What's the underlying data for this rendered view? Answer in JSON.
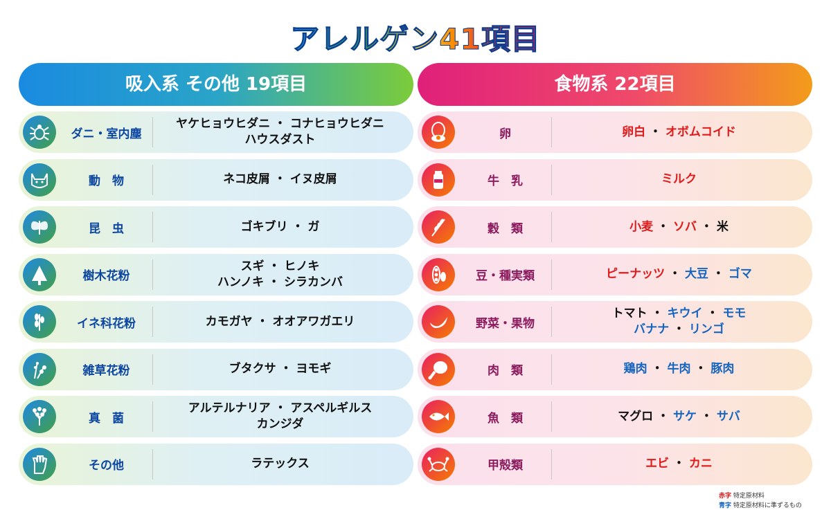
{
  "title": "アレルゲン41項目",
  "colors": {
    "red": "#e01a1a",
    "blue": "#1565c0",
    "left_accent": "#1a8be0",
    "right_accent": "#e0207a"
  },
  "left": {
    "header": "吸入系 その他 19項目",
    "rows": [
      {
        "icon": "mite-icon",
        "category": "ダニ・室内塵",
        "lines": [
          "ヤケヒョウヒダニ ・ コナヒョウヒダニ",
          "ハウスダスト"
        ]
      },
      {
        "icon": "cat-icon",
        "category": "動　物",
        "lines": [
          "ネコ皮屑 ・ イヌ皮屑"
        ]
      },
      {
        "icon": "moth-icon",
        "category": "昆　虫",
        "lines": [
          "ゴキブリ ・ ガ"
        ]
      },
      {
        "icon": "tree-icon",
        "category": "樹木花粉",
        "lines": [
          "スギ ・ ヒノキ",
          "ハンノキ ・ シラカンバ"
        ]
      },
      {
        "icon": "grass-icon",
        "category": "イネ科花粉",
        "lines": [
          "カモガヤ ・ オオアワガエリ"
        ]
      },
      {
        "icon": "weed-icon",
        "category": "雑草花粉",
        "lines": [
          "ブタクサ ・ ヨモギ"
        ]
      },
      {
        "icon": "fungus-icon",
        "category": "真　菌",
        "lines": [
          "アルテルナリア ・ アスペルギルス",
          "カンジダ"
        ]
      },
      {
        "icon": "glove-icon",
        "category": "その他",
        "lines": [
          "ラテックス"
        ]
      }
    ]
  },
  "right": {
    "header": "食物系 22項目",
    "rows": [
      {
        "icon": "egg-icon",
        "category": "卵",
        "lines": [
          [
            {
              "t": "卵白",
              "c": "red"
            },
            {
              "t": " ・ ",
              "c": "black"
            },
            {
              "t": "オボムコイド",
              "c": "red"
            }
          ]
        ]
      },
      {
        "icon": "milk-icon",
        "category": "牛　乳",
        "lines": [
          [
            {
              "t": "ミルク",
              "c": "red"
            }
          ]
        ]
      },
      {
        "icon": "wheat-icon",
        "category": "穀　類",
        "lines": [
          [
            {
              "t": "小麦",
              "c": "red"
            },
            {
              "t": " ・ ",
              "c": "black"
            },
            {
              "t": "ソバ",
              "c": "red"
            },
            {
              "t": " ・ ",
              "c": "black"
            },
            {
              "t": "米",
              "c": "black"
            }
          ]
        ]
      },
      {
        "icon": "bean-icon",
        "category": "豆・種実類",
        "lines": [
          [
            {
              "t": "ピーナッツ",
              "c": "red"
            },
            {
              "t": " ・ ",
              "c": "black"
            },
            {
              "t": "大豆",
              "c": "blue"
            },
            {
              "t": " ・ ",
              "c": "black"
            },
            {
              "t": "ゴマ",
              "c": "blue"
            }
          ]
        ]
      },
      {
        "icon": "banana-icon",
        "category": "野菜・果物",
        "lines": [
          [
            {
              "t": "トマト",
              "c": "black"
            },
            {
              "t": " ・ ",
              "c": "black"
            },
            {
              "t": "キウイ",
              "c": "blue"
            },
            {
              "t": " ・ ",
              "c": "black"
            },
            {
              "t": "モモ",
              "c": "blue"
            }
          ],
          [
            {
              "t": "バナナ",
              "c": "blue"
            },
            {
              "t": " ・ ",
              "c": "black"
            },
            {
              "t": "リンゴ",
              "c": "blue"
            }
          ]
        ]
      },
      {
        "icon": "meat-icon",
        "category": "肉　類",
        "lines": [
          [
            {
              "t": "鶏肉",
              "c": "blue"
            },
            {
              "t": " ・ ",
              "c": "black"
            },
            {
              "t": "牛肉",
              "c": "blue"
            },
            {
              "t": " ・ ",
              "c": "black"
            },
            {
              "t": "豚肉",
              "c": "blue"
            }
          ]
        ]
      },
      {
        "icon": "fish-icon",
        "category": "魚　類",
        "lines": [
          [
            {
              "t": "マグロ",
              "c": "black"
            },
            {
              "t": " ・ ",
              "c": "black"
            },
            {
              "t": "サケ",
              "c": "blue"
            },
            {
              "t": " ・ ",
              "c": "black"
            },
            {
              "t": "サバ",
              "c": "blue"
            }
          ]
        ]
      },
      {
        "icon": "crab-icon",
        "category": "甲殻類",
        "lines": [
          [
            {
              "t": "エビ",
              "c": "red"
            },
            {
              "t": " ・ ",
              "c": "black"
            },
            {
              "t": "カニ",
              "c": "red"
            }
          ]
        ]
      }
    ]
  },
  "legend": {
    "red_key": "赤字",
    "red_text": "特定原材料",
    "blue_key": "青字",
    "blue_text": "特定原材料に準ずるもの"
  }
}
